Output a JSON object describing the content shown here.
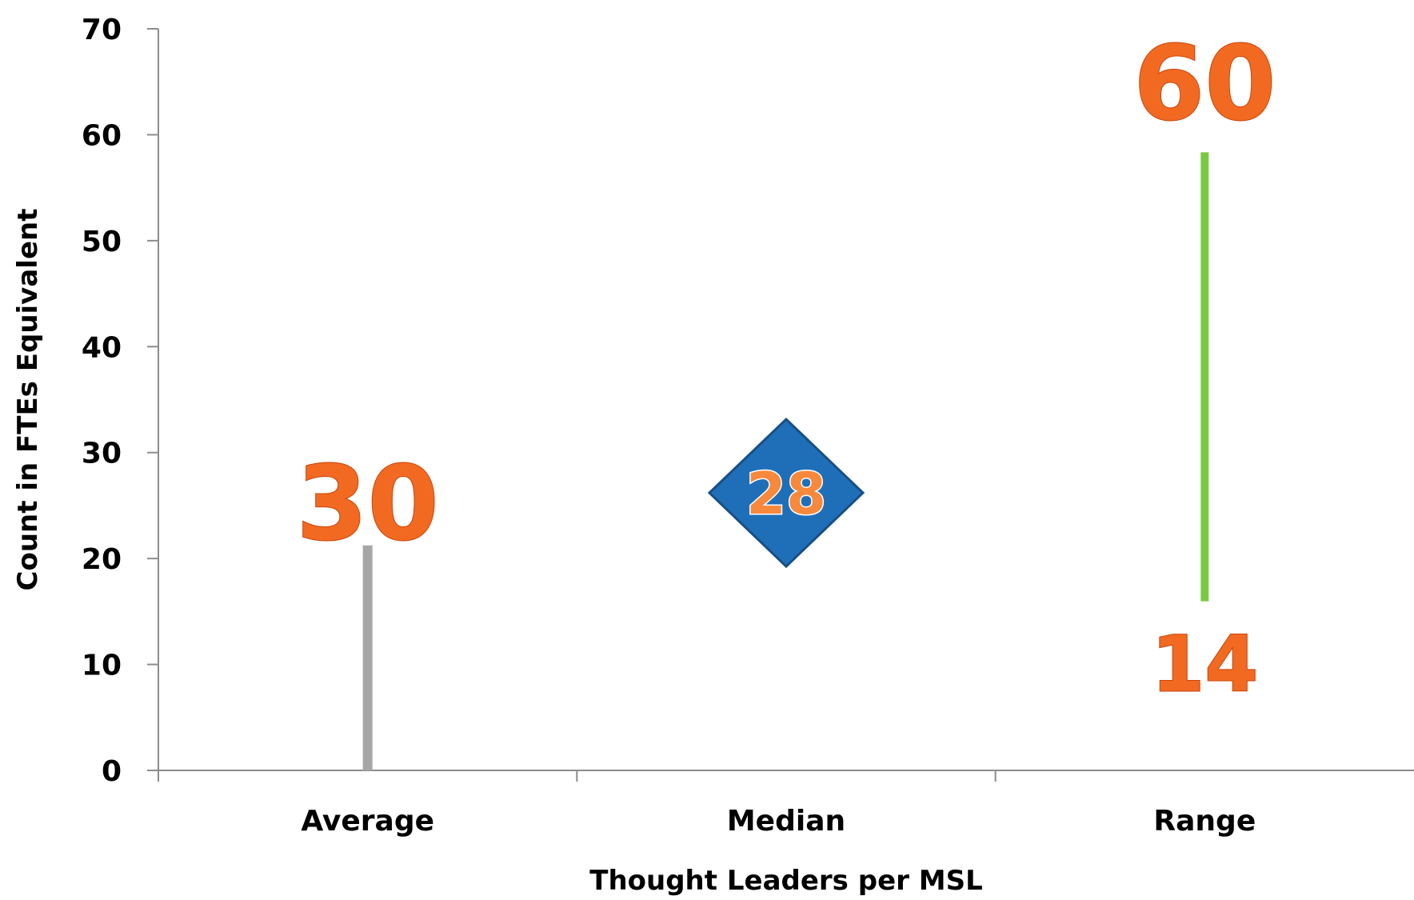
{
  "chart_data": {
    "type": "range",
    "categories": [
      "Average",
      "Median",
      "Range"
    ],
    "average": 30,
    "median": 28,
    "range": {
      "min": 14,
      "max": 60
    },
    "labels": {
      "average": "30",
      "median": "28",
      "range_min": "14",
      "range_max": "60"
    },
    "y_ticks": [
      0,
      10,
      20,
      30,
      40,
      50,
      60,
      70
    ],
    "ylim": [
      0,
      70
    ],
    "xlabel": "Thought Leaders per MSL",
    "ylabel": "Count in FTEs Equivalent",
    "grid": false,
    "colors": {
      "average_bar": "#a6a6a6",
      "median_marker": "#1f6fb8",
      "range_bar": "#7ac943",
      "value_text": "#f26a21"
    }
  }
}
